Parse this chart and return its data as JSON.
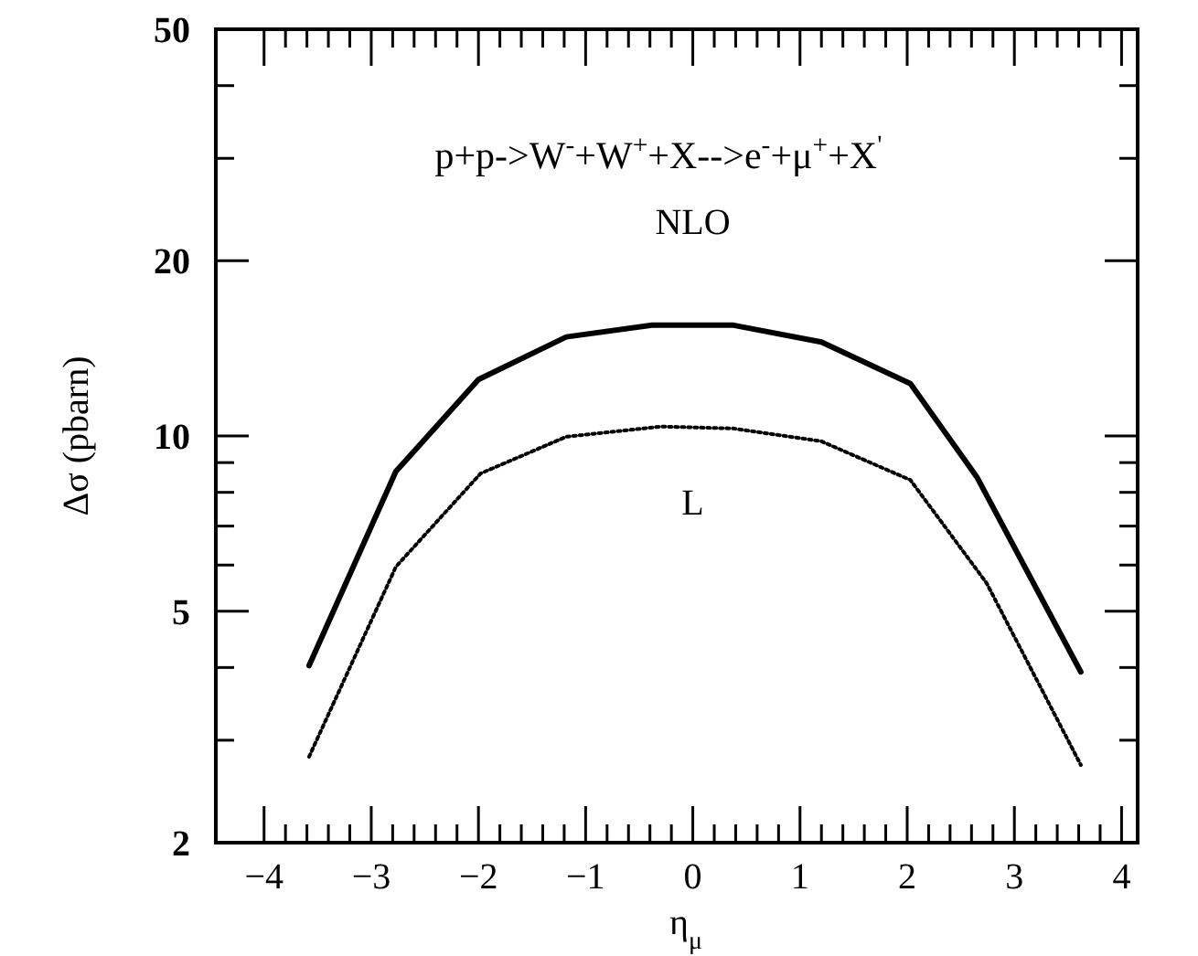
{
  "chart_data": {
    "type": "line",
    "title": "p+p->W$^{-}$+W$^{+}$+X-->e$^{-}$+μ$^{+}$+X$^{'}$",
    "xlabel": "η$_{μ}$",
    "ylabel": "Δσ (pbarn)",
    "log": "y",
    "xlim": [
      -4.45,
      4.15
    ],
    "ylim": [
      2,
      50
    ],
    "xticks": [
      -4,
      {
        "value": -3.8,
        "label": null
      },
      {
        "value": -3.6,
        "label": null
      },
      {
        "value": -3.4,
        "label": null
      },
      {
        "value": -3.2,
        "label": null
      },
      -3,
      {
        "value": -2.8,
        "label": null
      },
      {
        "value": -2.6,
        "label": null
      },
      {
        "value": -2.4,
        "label": null
      },
      {
        "value": -2.2,
        "label": null
      },
      -2,
      {
        "value": -1.8,
        "label": null
      },
      {
        "value": -1.6,
        "label": null
      },
      {
        "value": -1.4,
        "label": null
      },
      {
        "value": -1.2,
        "label": null
      },
      -1,
      {
        "value": -0.8,
        "label": null
      },
      {
        "value": -0.6,
        "label": null
      },
      {
        "value": -0.4,
        "label": null
      },
      {
        "value": -0.2,
        "label": null
      },
      0,
      {
        "value": 0.2,
        "label": null
      },
      {
        "value": 0.4,
        "label": null
      },
      {
        "value": 0.6,
        "label": null
      },
      {
        "value": 0.8,
        "label": null
      },
      1,
      {
        "value": 1.2,
        "label": null
      },
      {
        "value": 1.4,
        "label": null
      },
      {
        "value": 1.6,
        "label": null
      },
      {
        "value": 1.8,
        "label": null
      },
      2,
      {
        "value": 2.2,
        "label": null
      },
      {
        "value": 2.4,
        "label": null
      },
      {
        "value": 2.6,
        "label": null
      },
      {
        "value": 2.8,
        "label": null
      },
      3,
      {
        "value": 3.2,
        "label": null
      },
      {
        "value": 3.4,
        "label": null
      },
      {
        "value": 3.6,
        "label": null
      },
      {
        "value": 3.8,
        "label": null
      },
      4
    ],
    "yticks": [
      2,
      {
        "value": 3,
        "label": null
      },
      {
        "value": 4,
        "label": null
      },
      5,
      {
        "value": 6,
        "label": null
      },
      {
        "value": 7,
        "label": null
      },
      {
        "value": 8,
        "label": null
      },
      {
        "value": 9,
        "label": null
      },
      10,
      20,
      {
        "value": 30,
        "label": null
      },
      {
        "value": 40,
        "label": null
      },
      50
    ],
    "grid": false,
    "marker": "none",
    "series": [
      {
        "name": "NLO",
        "color": "#000000",
        "line_style": "solid",
        "x": [
          -3.58,
          -2.77,
          -2.0,
          -1.18,
          -0.38,
          0.38,
          1.2,
          2.03,
          2.65,
          3.62
        ],
        "values": [
          4.03,
          8.69,
          12.5,
          14.8,
          15.5,
          15.5,
          14.5,
          12.3,
          8.5,
          3.93
        ]
      },
      {
        "name": "L",
        "color": "#000000",
        "line_style": "dotted",
        "x": [
          -3.58,
          -2.77,
          -1.98,
          -1.18,
          -0.29,
          0.38,
          1.2,
          2.03,
          2.74,
          3.62
        ],
        "values": [
          2.81,
          5.96,
          8.62,
          9.97,
          10.38,
          10.3,
          9.79,
          8.4,
          5.59,
          2.72
        ]
      }
    ]
  }
}
